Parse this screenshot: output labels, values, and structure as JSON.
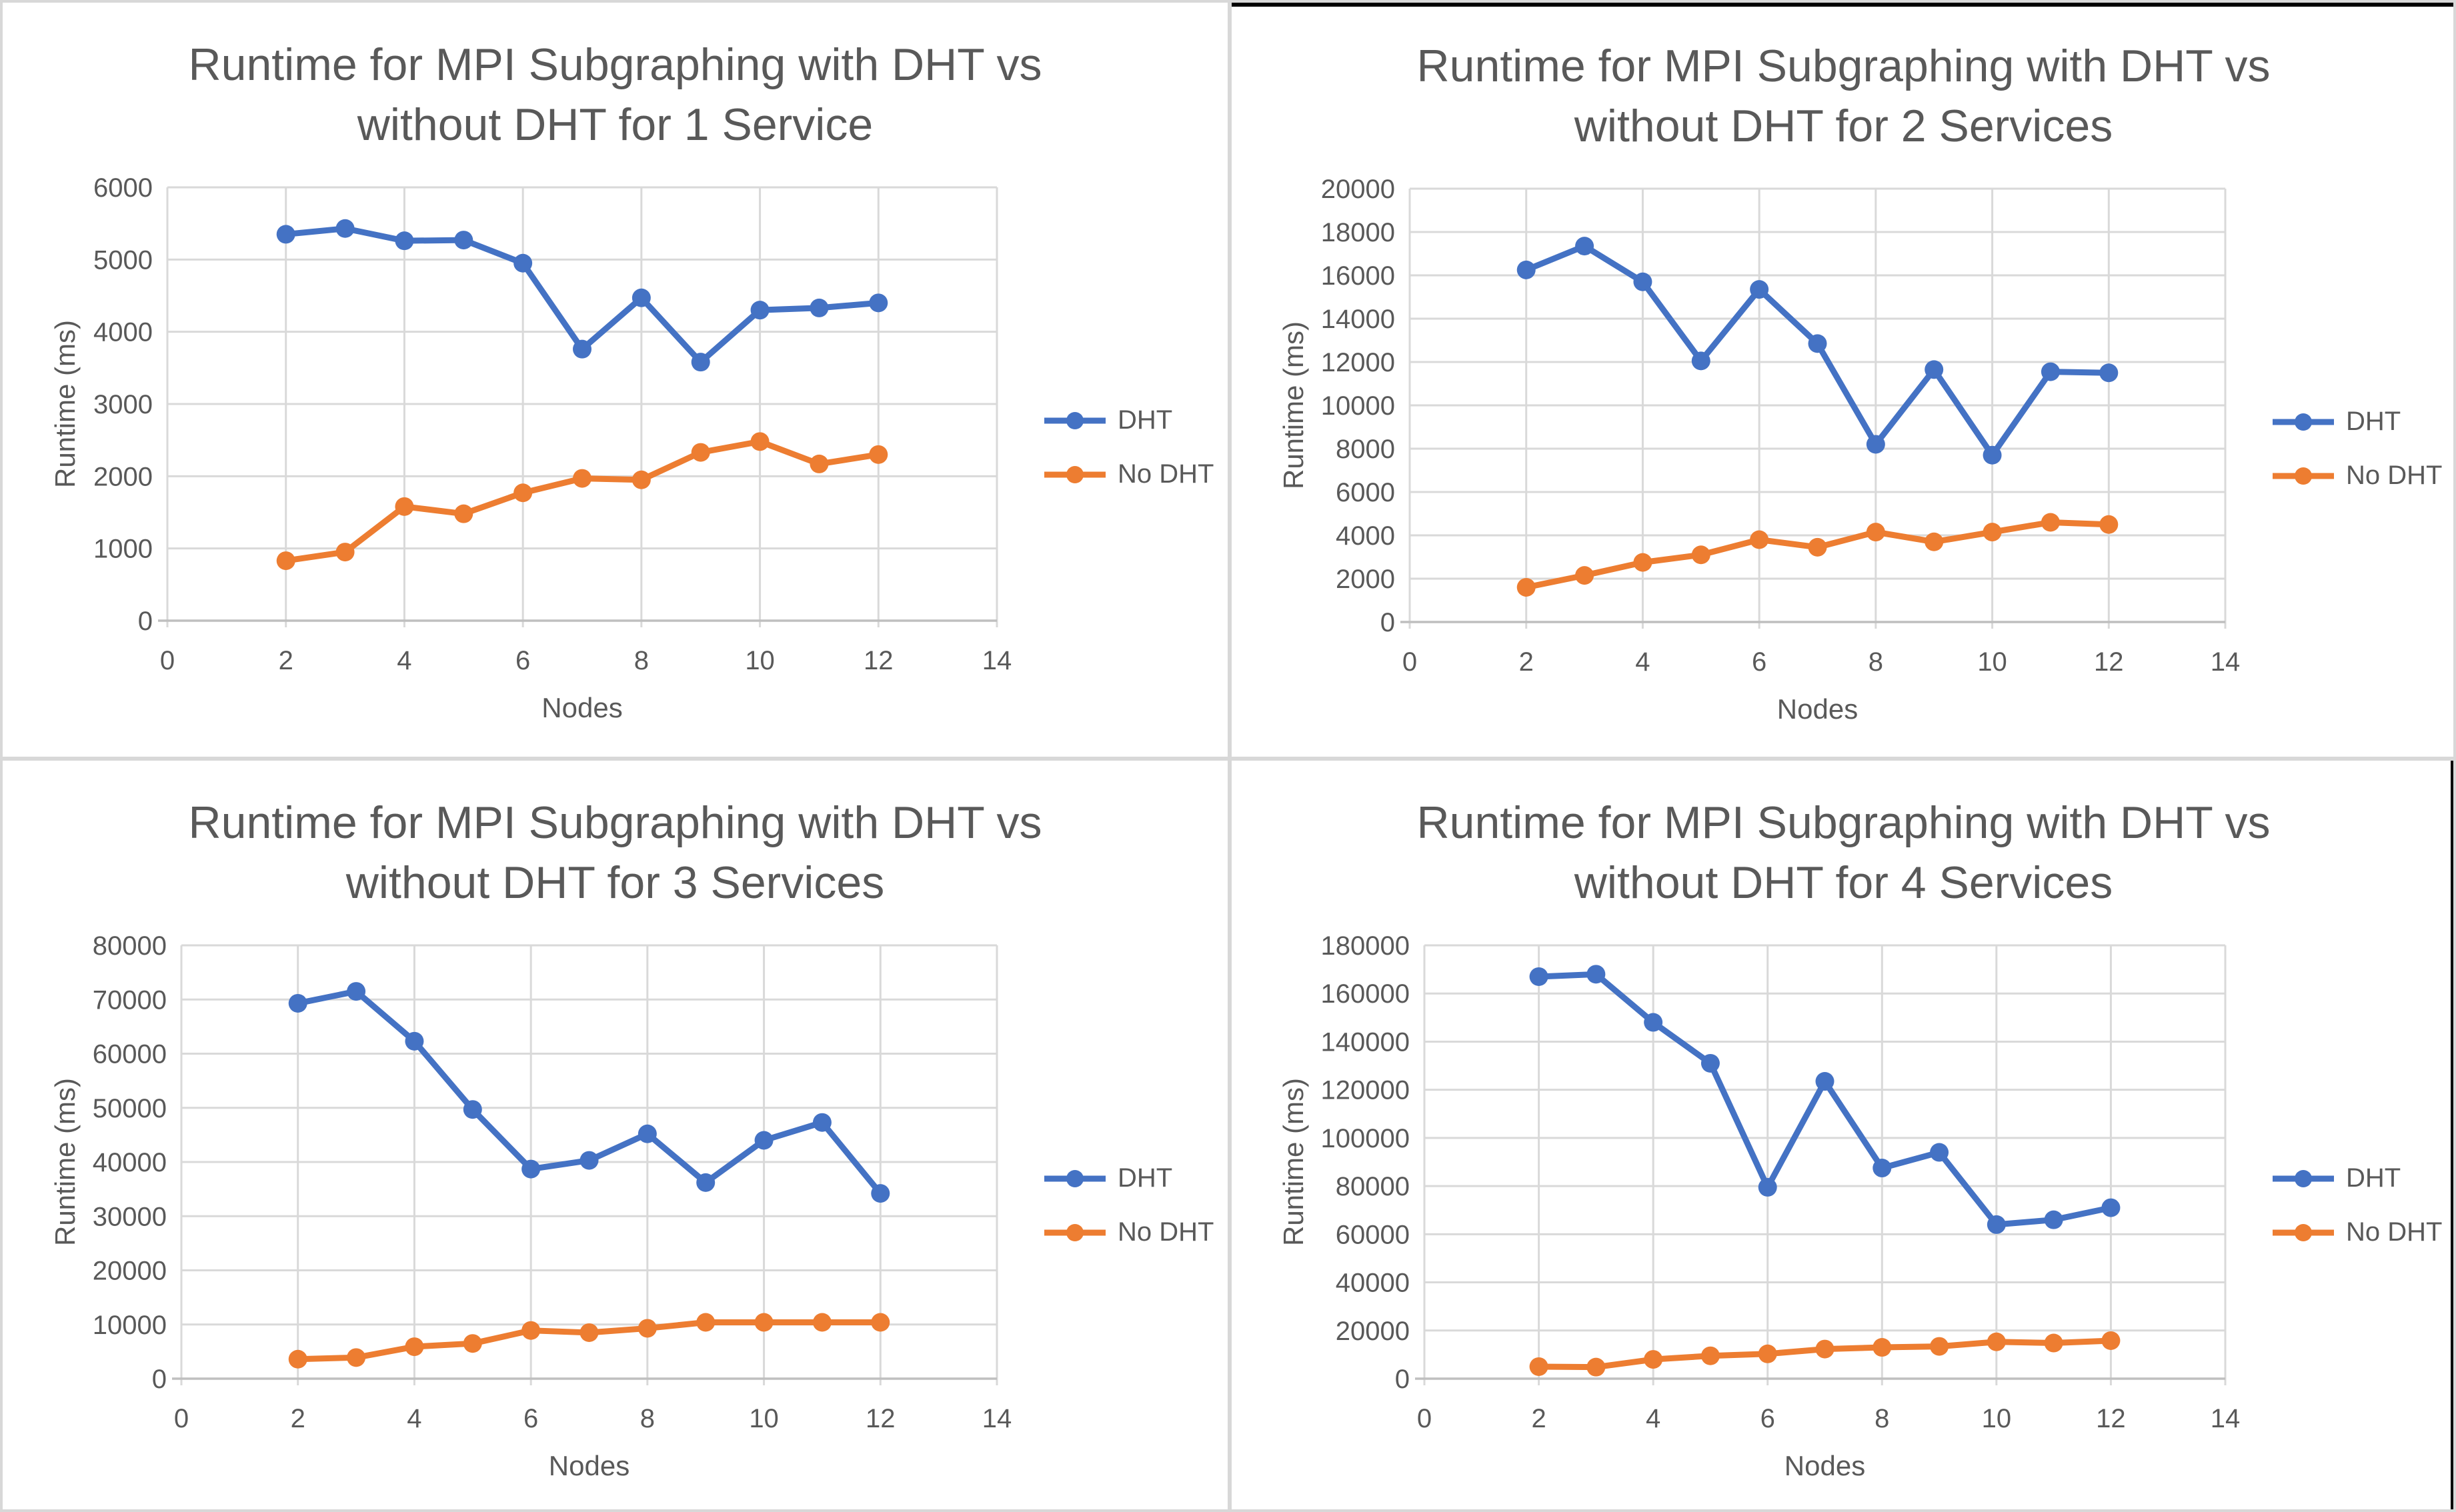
{
  "colors": {
    "dht": "#4472C4",
    "no_dht": "#ED7D31",
    "text": "#595959",
    "gridline": "#D9D9D9",
    "axis_line": "#BFBFBF",
    "panel_border": "#D8D8D8",
    "black_edge": "#000000"
  },
  "chart_data": [
    {
      "type": "line",
      "title": "Runtime for MPI Subgraphing with DHT vs without DHT for 1 Service",
      "title_lines": [
        "Runtime for MPI Subgraphing with DHT vs",
        "without DHT for 1 Service"
      ],
      "xlabel": "Nodes",
      "ylabel": "Runtime (ms)",
      "x": [
        2,
        3,
        4,
        5,
        6,
        7,
        8,
        9,
        10,
        11,
        12
      ],
      "series": [
        {
          "name": "DHT",
          "color_key": "dht",
          "values": [
            5350,
            5430,
            5260,
            5270,
            4950,
            3760,
            4470,
            3580,
            4300,
            4330,
            4400
          ]
        },
        {
          "name": "No DHT",
          "color_key": "no_dht",
          "values": [
            830,
            950,
            1580,
            1480,
            1770,
            1970,
            1950,
            2330,
            2480,
            2170,
            2300
          ]
        }
      ],
      "xlim": [
        0,
        14
      ],
      "ylim": [
        0,
        6000
      ],
      "xtick_step": 2,
      "ytick_step": 1000,
      "xticks": [
        0,
        2,
        4,
        6,
        8,
        10,
        12,
        14
      ],
      "yticks": [
        0,
        1000,
        2000,
        3000,
        4000,
        5000,
        6000
      ],
      "grid": true,
      "legend_position": "right"
    },
    {
      "type": "line",
      "title": "Runtime for MPI Subgraphing with DHT vs without DHT for 2 Services",
      "title_lines": [
        "Runtime for MPI Subgraphing with DHT vs",
        "without DHT for 2 Services"
      ],
      "xlabel": "Nodes",
      "ylabel": "Runtime (ms)",
      "x": [
        2,
        3,
        4,
        5,
        6,
        7,
        8,
        9,
        10,
        11,
        12
      ],
      "series": [
        {
          "name": "DHT",
          "color_key": "dht",
          "values": [
            16250,
            17350,
            15700,
            12050,
            15350,
            12850,
            8200,
            11650,
            7700,
            11550,
            11500
          ]
        },
        {
          "name": "No DHT",
          "color_key": "no_dht",
          "values": [
            1600,
            2150,
            2750,
            3100,
            3800,
            3450,
            4150,
            3700,
            4150,
            4600,
            4500
          ]
        }
      ],
      "xlim": [
        0,
        14
      ],
      "ylim": [
        0,
        20000
      ],
      "xtick_step": 2,
      "ytick_step": 2000,
      "xticks": [
        0,
        2,
        4,
        6,
        8,
        10,
        12,
        14
      ],
      "yticks": [
        0,
        2000,
        4000,
        6000,
        8000,
        10000,
        12000,
        14000,
        16000,
        18000,
        20000
      ],
      "grid": true,
      "legend_position": "right"
    },
    {
      "type": "line",
      "title": "Runtime for MPI Subgraphing with DHT vs without DHT for 3 Services",
      "title_lines": [
        "Runtime for MPI Subgraphing with DHT vs",
        "without DHT for 3 Services"
      ],
      "xlabel": "Nodes",
      "ylabel": "Runtime (ms)",
      "x": [
        2,
        3,
        4,
        5,
        6,
        7,
        8,
        9,
        10,
        11,
        12
      ],
      "series": [
        {
          "name": "DHT",
          "color_key": "dht",
          "values": [
            69300,
            71500,
            62300,
            49700,
            38700,
            40300,
            45200,
            36200,
            44000,
            47300,
            34200
          ]
        },
        {
          "name": "No DHT",
          "color_key": "no_dht",
          "values": [
            3600,
            3900,
            5900,
            6500,
            8900,
            8500,
            9300,
            10400,
            10400,
            10400,
            10400
          ]
        }
      ],
      "xlim": [
        0,
        14
      ],
      "ylim": [
        0,
        80000
      ],
      "xtick_step": 2,
      "ytick_step": 10000,
      "xticks": [
        0,
        2,
        4,
        6,
        8,
        10,
        12,
        14
      ],
      "yticks": [
        0,
        10000,
        20000,
        30000,
        40000,
        50000,
        60000,
        70000,
        80000
      ],
      "grid": true,
      "legend_position": "right"
    },
    {
      "type": "line",
      "title": "Runtime for MPI Subgraphing with DHT vs without DHT for 4 Services",
      "title_lines": [
        "Runtime for MPI Subgraphing with DHT vs",
        "without DHT for 4 Services"
      ],
      "xlabel": "Nodes",
      "ylabel": "Runtime (ms)",
      "x": [
        2,
        3,
        4,
        5,
        6,
        7,
        8,
        9,
        10,
        11,
        12
      ],
      "series": [
        {
          "name": "DHT",
          "color_key": "dht",
          "values": [
            167000,
            168000,
            148000,
            131000,
            79500,
            123500,
            87500,
            94000,
            64000,
            66000,
            71000
          ]
        },
        {
          "name": "No DHT",
          "color_key": "no_dht",
          "values": [
            5000,
            4800,
            8000,
            9500,
            10300,
            12300,
            13000,
            13400,
            15300,
            14800,
            15800
          ]
        }
      ],
      "xlim": [
        0,
        14
      ],
      "ylim": [
        0,
        180000
      ],
      "xtick_step": 2,
      "ytick_step": 20000,
      "xticks": [
        0,
        2,
        4,
        6,
        8,
        10,
        12,
        14
      ],
      "yticks": [
        0,
        20000,
        40000,
        60000,
        80000,
        100000,
        120000,
        140000,
        160000,
        180000
      ],
      "grid": true,
      "legend_position": "right"
    }
  ]
}
